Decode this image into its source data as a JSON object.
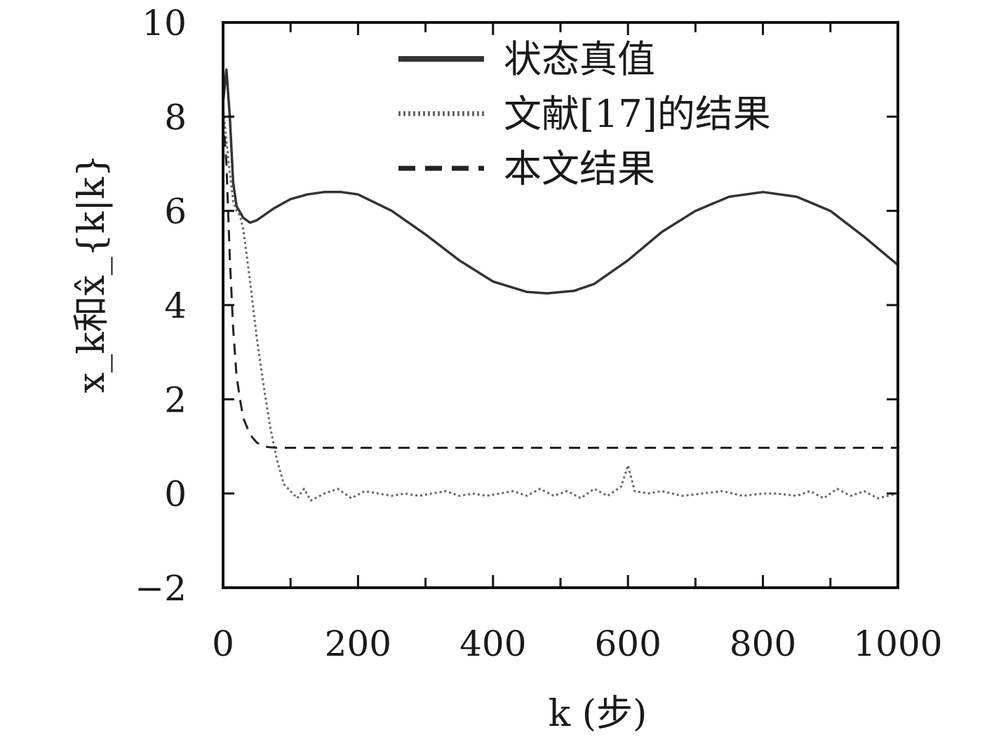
{
  "chart_data": {
    "type": "line",
    "xlabel": "k (步)",
    "ylabel": "x_k和x̂_{k|k}",
    "xlim": [
      0,
      1000
    ],
    "ylim": [
      -2,
      10
    ],
    "xticks": [
      0,
      200,
      400,
      600,
      800,
      1000
    ],
    "xtick_labels": [
      "0",
      "200",
      "400",
      "600",
      "800",
      "1000"
    ],
    "yticks": [
      -2,
      0,
      2,
      4,
      6,
      8,
      10
    ],
    "ytick_labels": [
      "−2",
      "0",
      "2",
      "4",
      "6",
      "8",
      "10"
    ],
    "grid": false,
    "legend_position": "top-right",
    "series": [
      {
        "name": "状态真值",
        "style": "solid",
        "color": "#333333",
        "x": [
          0,
          5,
          10,
          15,
          20,
          30,
          40,
          50,
          75,
          100,
          125,
          150,
          175,
          200,
          250,
          300,
          350,
          400,
          450,
          480,
          520,
          550,
          600,
          650,
          700,
          750,
          800,
          850,
          900,
          950,
          1000
        ],
        "y": [
          8.3,
          9.0,
          8.0,
          6.6,
          6.1,
          5.85,
          5.75,
          5.8,
          6.05,
          6.25,
          6.35,
          6.4,
          6.4,
          6.35,
          6.0,
          5.5,
          4.95,
          4.5,
          4.28,
          4.25,
          4.3,
          4.45,
          4.95,
          5.55,
          6.0,
          6.3,
          6.4,
          6.3,
          6.0,
          5.45,
          4.85
        ]
      },
      {
        "name": "文献[17]的结果",
        "style": "dotted",
        "color": "#666666",
        "x": [
          0,
          5,
          10,
          15,
          20,
          25,
          30,
          40,
          50,
          60,
          70,
          80,
          90,
          100,
          110,
          120,
          130,
          150,
          170,
          190,
          210,
          230,
          250,
          270,
          290,
          310,
          330,
          350,
          370,
          390,
          410,
          430,
          450,
          470,
          490,
          510,
          530,
          550,
          570,
          590,
          600,
          610,
          630,
          650,
          680,
          710,
          740,
          770,
          800,
          820,
          850,
          870,
          890,
          910,
          930,
          950,
          970,
          1000
        ],
        "y": [
          8.2,
          7.5,
          6.8,
          6.2,
          6.0,
          5.9,
          5.6,
          4.5,
          3.3,
          2.3,
          1.4,
          0.7,
          0.2,
          0.05,
          -0.1,
          0.1,
          -0.15,
          0.0,
          0.1,
          -0.1,
          0.05,
          0.0,
          -0.05,
          0.0,
          -0.05,
          0.0,
          0.05,
          -0.05,
          0.0,
          -0.05,
          0.0,
          0.05,
          -0.05,
          0.1,
          -0.05,
          0.05,
          -0.1,
          0.1,
          -0.05,
          0.15,
          0.6,
          0.05,
          0.0,
          0.05,
          -0.05,
          0.0,
          0.05,
          -0.05,
          0.0,
          0.0,
          -0.05,
          0.05,
          -0.1,
          0.1,
          -0.05,
          0.05,
          -0.1,
          0.0
        ]
      },
      {
        "name": "本文结果",
        "style": "dashed",
        "color": "#222222",
        "x": [
          0,
          5,
          10,
          15,
          20,
          25,
          30,
          40,
          50,
          60,
          70,
          80,
          100,
          150,
          200,
          300,
          400,
          500,
          600,
          700,
          800,
          900,
          1000
        ],
        "y": [
          8.0,
          7.0,
          5.0,
          3.5,
          2.5,
          2.0,
          1.6,
          1.25,
          1.08,
          1.0,
          0.98,
          0.97,
          0.97,
          0.97,
          0.97,
          0.97,
          0.97,
          0.97,
          0.97,
          0.97,
          0.97,
          0.97,
          0.97
        ]
      }
    ]
  }
}
